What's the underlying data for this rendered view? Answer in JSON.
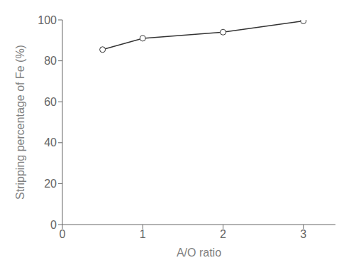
{
  "chart_data": {
    "type": "line",
    "x": [
      0.5,
      1,
      2,
      3
    ],
    "values": [
      85.5,
      91.0,
      94.0,
      99.5
    ],
    "xlabel": "A/O ratio",
    "ylabel": "Stripping percentage of Fe (%)",
    "xlim": [
      0,
      3.4
    ],
    "ylim": [
      0,
      100
    ],
    "xticks": [
      0,
      1,
      2,
      3
    ],
    "yticks": [
      0,
      20,
      40,
      60,
      80,
      100
    ],
    "color": "#333333",
    "marker": "circle",
    "grid": false
  }
}
